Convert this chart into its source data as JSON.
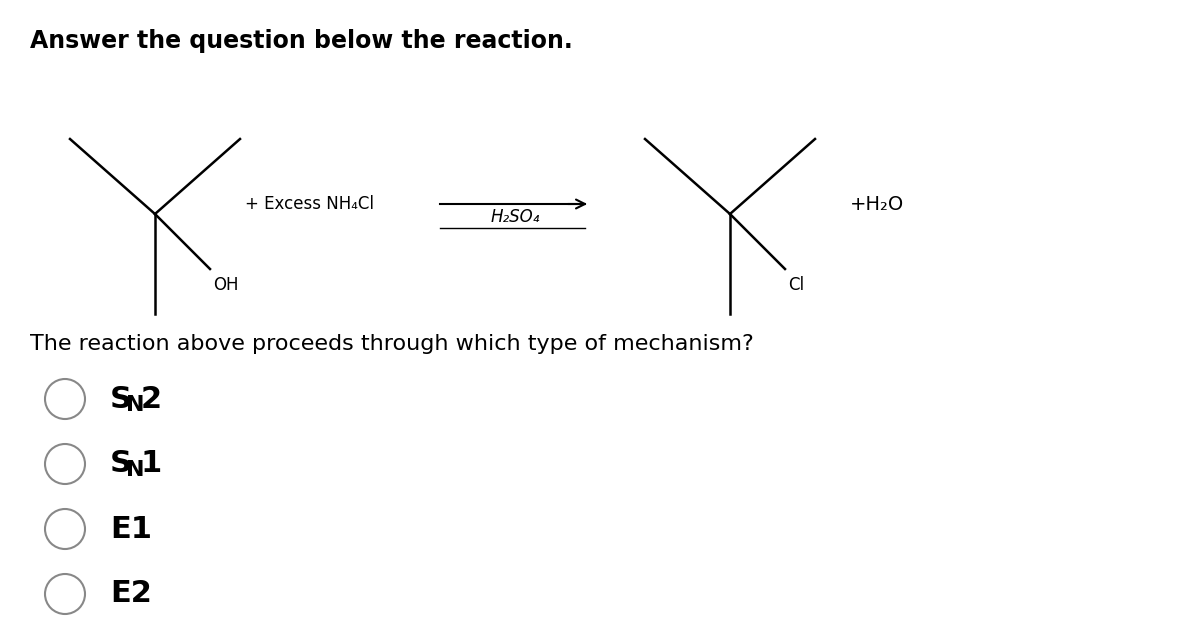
{
  "title": "Answer the question below the reaction.",
  "question": "The reaction above proceeds through which type of mechanism?",
  "choices": [
    "SN2",
    "SN1",
    "E1",
    "E2"
  ],
  "reagent_above": "H₂SO₄",
  "reagent_left": "+ Excess NH₄Cl",
  "product_right": "+H₂O",
  "reactant_label": "OH",
  "product_label": "Cl",
  "background_color": "#ffffff",
  "text_color": "#000000",
  "font_size_title": 17,
  "font_size_question": 16,
  "font_size_choices": 22,
  "font_size_subscript": 16,
  "font_size_mol_label": 12,
  "font_size_reagent": 12
}
